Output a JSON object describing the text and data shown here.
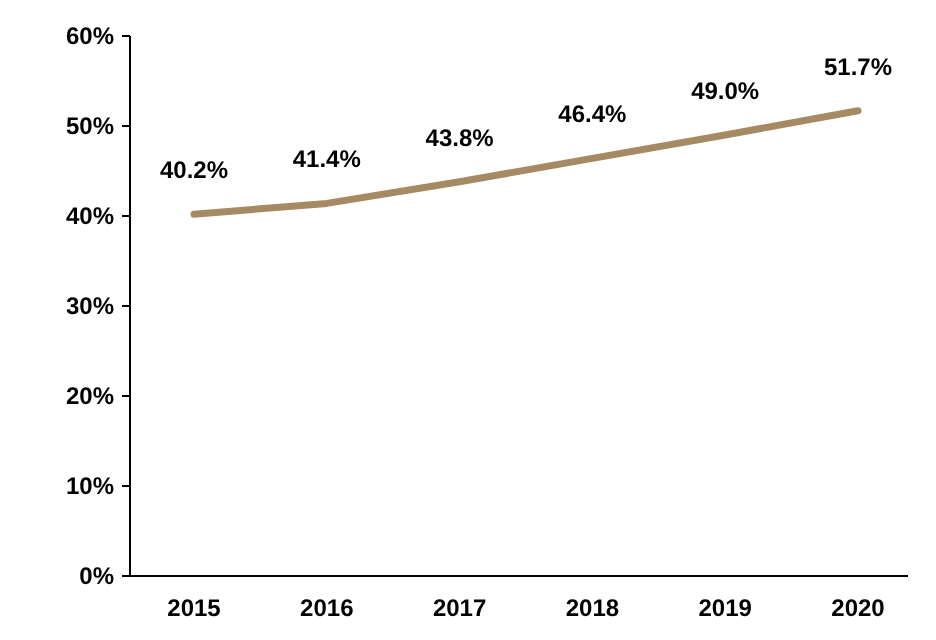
{
  "chart_data": {
    "type": "line",
    "categories": [
      "2015",
      "2016",
      "2017",
      "2018",
      "2019",
      "2020"
    ],
    "series": [
      {
        "color": "#a68a64",
        "values": [
          40.2,
          41.4,
          43.8,
          46.4,
          49.0,
          51.7
        ],
        "value_labels": [
          "40.2%",
          "41.4%",
          "43.8%",
          "46.4%",
          "49.0%",
          "51.7%"
        ]
      }
    ],
    "ylim": [
      0,
      60
    ],
    "yticks": [
      {
        "value": 0,
        "label": "0%"
      },
      {
        "value": 10,
        "label": "10%"
      },
      {
        "value": 20,
        "label": "20%"
      },
      {
        "value": 30,
        "label": "30%"
      },
      {
        "value": 40,
        "label": "40%"
      },
      {
        "value": 50,
        "label": "50%"
      },
      {
        "value": 60,
        "label": "60%"
      }
    ],
    "marker": "none",
    "line_style": "solid"
  }
}
